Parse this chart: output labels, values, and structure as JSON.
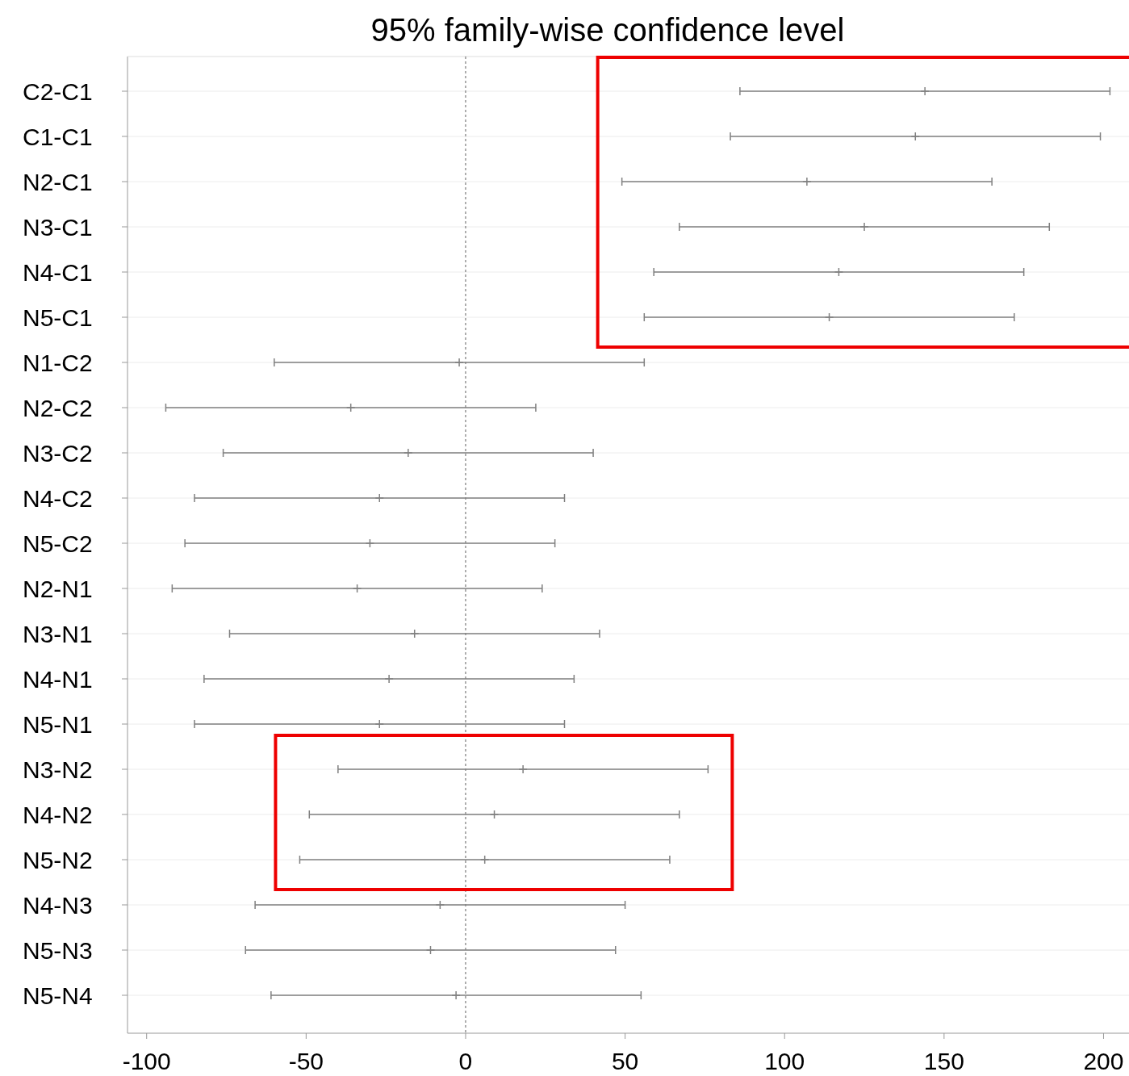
{
  "chart_data": {
    "type": "scatter",
    "title": "95% family-wise confidence level",
    "orientation": "horizontal",
    "categories": [
      "C2-C1",
      "C1-C1",
      "N2-C1",
      "N3-C1",
      "N4-C1",
      "N5-C1",
      "N1-C2",
      "N2-C2",
      "N3-C2",
      "N4-C2",
      "N5-C2",
      "N2-N1",
      "N3-N1",
      "N4-N1",
      "N5-N1",
      "N3-N2",
      "N4-N2",
      "N5-N2",
      "N4-N3",
      "N5-N3",
      "N5-N4"
    ],
    "values": [
      144,
      141,
      107,
      125,
      117,
      114,
      -2,
      -36,
      -18,
      -27,
      -30,
      -34,
      -16,
      -24,
      -27,
      18,
      9,
      6,
      -8,
      -11,
      -3
    ],
    "errors": [
      58,
      58,
      58,
      58,
      58,
      58,
      58,
      58,
      58,
      58,
      58,
      58,
      58,
      58,
      58,
      58,
      58,
      58,
      58,
      58,
      58
    ],
    "color": "#808080",
    "marker": "cross",
    "xlim": [
      -106,
      210
    ],
    "xticks": [
      -100,
      -50,
      0,
      50,
      100,
      150,
      200
    ],
    "grid": "y",
    "ref_lines": [
      {
        "axis": "x",
        "value": 0,
        "color": "#606060",
        "line_style": "dotted"
      }
    ]
  }
}
